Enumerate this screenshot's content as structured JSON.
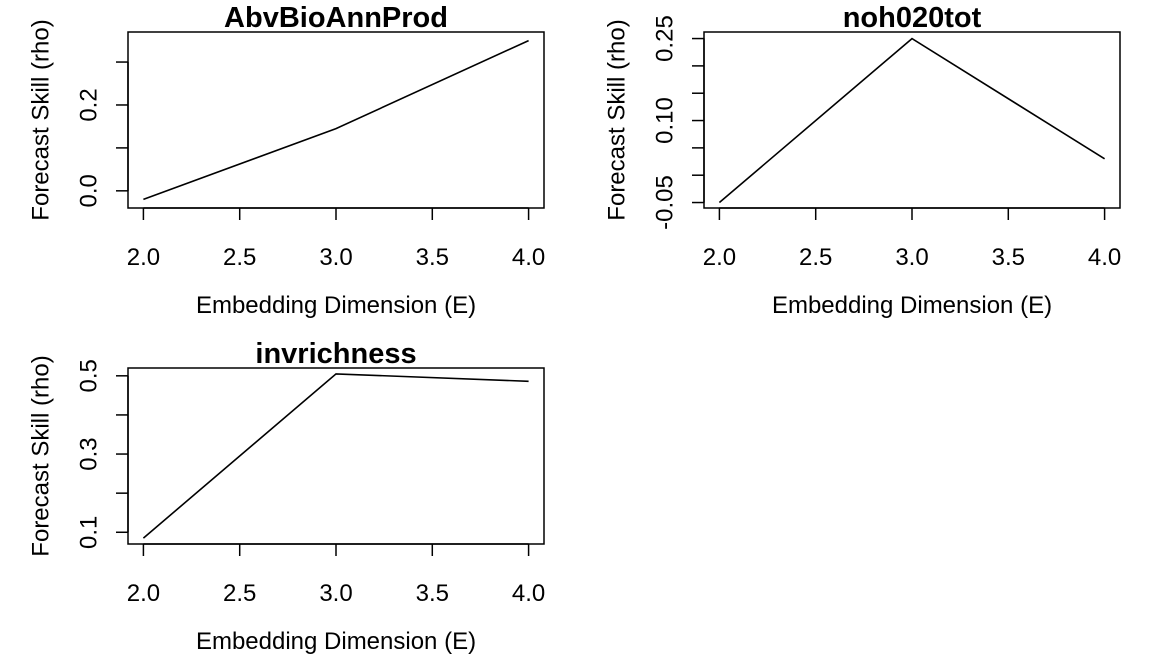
{
  "chart_data": [
    {
      "type": "line",
      "title": "AbvBioAnnProd",
      "xlabel": "Embedding Dimension (E)",
      "ylabel": "Forecast Skill (rho)",
      "x": [
        2,
        3,
        4
      ],
      "y": [
        -0.02,
        0.145,
        0.35
      ],
      "xlim": [
        1.92,
        4.08
      ],
      "ylim": [
        -0.04,
        0.37
      ],
      "xticks": [
        2.0,
        2.5,
        3.0,
        3.5,
        4.0
      ],
      "xtick_labels": [
        "2.0",
        "2.5",
        "3.0",
        "3.5",
        "4.0"
      ],
      "yticks": [
        0.0,
        0.1,
        0.2,
        0.3
      ],
      "ytick_labels": [
        "0.0",
        "",
        "0.2",
        ""
      ],
      "line_color": "#000000"
    },
    {
      "type": "line",
      "title": "noh020tot",
      "xlabel": "Embedding Dimension (E)",
      "ylabel": "Forecast Skill (rho)",
      "x": [
        2,
        3,
        4
      ],
      "y": [
        -0.05,
        0.25,
        0.03
      ],
      "xlim": [
        1.92,
        4.08
      ],
      "ylim": [
        -0.06,
        0.262
      ],
      "xticks": [
        2.0,
        2.5,
        3.0,
        3.5,
        4.0
      ],
      "xtick_labels": [
        "2.0",
        "2.5",
        "3.0",
        "3.5",
        "4.0"
      ],
      "yticks": [
        -0.05,
        0.0,
        0.05,
        0.1,
        0.15,
        0.2,
        0.25
      ],
      "ytick_labels": [
        "-0.05",
        "",
        "",
        "0.10",
        "",
        "",
        "0.25"
      ],
      "line_color": "#000000"
    },
    {
      "type": "line",
      "title": "invrichness",
      "xlabel": "Embedding Dimension (E)",
      "ylabel": "Forecast Skill (rho)",
      "x": [
        2,
        3,
        4
      ],
      "y": [
        0.085,
        0.505,
        0.486
      ],
      "xlim": [
        1.92,
        4.08
      ],
      "ylim": [
        0.07,
        0.52
      ],
      "xticks": [
        2.0,
        2.5,
        3.0,
        3.5,
        4.0
      ],
      "xtick_labels": [
        "2.0",
        "2.5",
        "3.0",
        "3.5",
        "4.0"
      ],
      "yticks": [
        0.1,
        0.2,
        0.3,
        0.4,
        0.5
      ],
      "ytick_labels": [
        "0.1",
        "",
        "0.3",
        "",
        "0.5"
      ],
      "line_color": "#000000"
    }
  ]
}
